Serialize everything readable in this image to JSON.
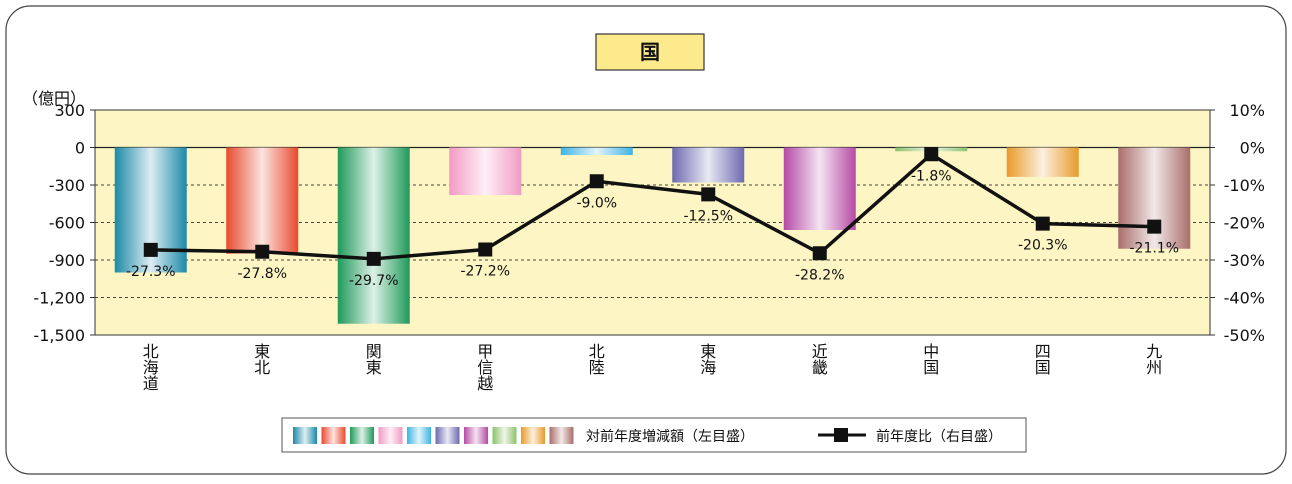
{
  "chart_data": {
    "type": "bar",
    "title": "国",
    "unit_label": "（億円）",
    "categories": [
      "北海道",
      "東北",
      "関東",
      "甲信越",
      "北陸",
      "東海",
      "近畿",
      "中国",
      "四国",
      "九州"
    ],
    "series": [
      {
        "name": "対前年度増減額（左目盛）",
        "type": "bar",
        "axis": "left",
        "values": [
          -1000,
          -850,
          -1410,
          -380,
          -60,
          -280,
          -660,
          -30,
          -235,
          -810
        ]
      },
      {
        "name": "前年度比（右目盛）",
        "type": "line",
        "axis": "right",
        "values": [
          -27.3,
          -27.8,
          -29.7,
          -27.2,
          -9.0,
          -12.5,
          -28.2,
          -1.8,
          -20.3,
          -21.1
        ],
        "labels": [
          "-27.3%",
          "-27.8%",
          "-29.7%",
          "-27.2%",
          "-9.0%",
          "-12.5%",
          "-28.2%",
          "-1.8%",
          "-20.3%",
          "-21.1%"
        ]
      }
    ],
    "left_axis": {
      "range": [
        -1500,
        300
      ],
      "ticks": [
        300,
        0,
        -300,
        -600,
        -900,
        -1200,
        -1500
      ],
      "tick_labels": [
        "300",
        "0",
        "-300",
        "-600",
        "-900",
        "-1,200",
        "-1,500"
      ]
    },
    "right_axis": {
      "range": [
        -50,
        10
      ],
      "ticks": [
        10,
        0,
        -10,
        -20,
        -30,
        -40,
        -50
      ],
      "tick_labels": [
        "10%",
        "0%",
        "-10%",
        "-20%",
        "-30%",
        "-40%",
        "-50%"
      ]
    },
    "grid": "dashed horizontal",
    "legend_position": "bottom-center",
    "bar_colors": [
      "#1c8aa8",
      "#e84a2e",
      "#1f9a5a",
      "#f29ac4",
      "#3db4e4",
      "#6c6ab0",
      "#b54aa5",
      "#8cc26a",
      "#e89a2a",
      "#a86e6a"
    ],
    "line_color": "#111111",
    "plot_background": "#fdf6c4"
  }
}
